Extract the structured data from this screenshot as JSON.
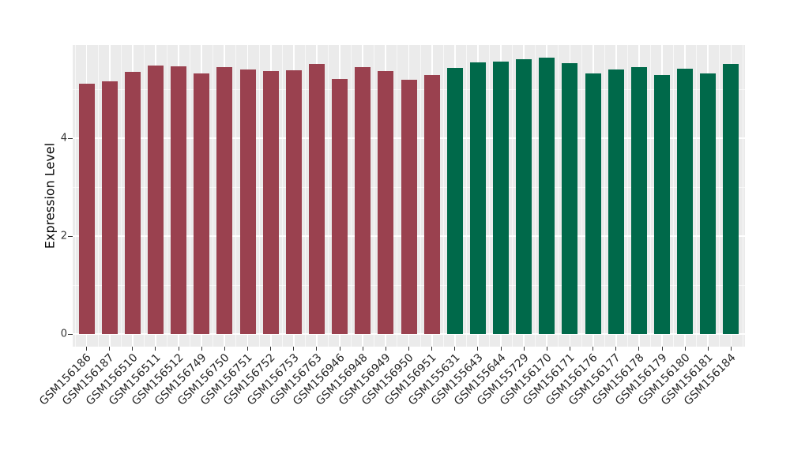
{
  "chart_data": {
    "type": "bar",
    "title": "",
    "xlabel": "",
    "ylabel": "Expression Level",
    "ylim": [
      0,
      5.9
    ],
    "yticks_major": [
      0,
      2,
      4
    ],
    "yticks_minor": [
      1,
      3,
      5
    ],
    "grid": "on",
    "legend_position": "none",
    "categories": [
      "GSM156186",
      "GSM156187",
      "GSM156510",
      "GSM156511",
      "GSM156512",
      "GSM156749",
      "GSM156750",
      "GSM156751",
      "GSM156752",
      "GSM156753",
      "GSM156763",
      "GSM156946",
      "GSM156948",
      "GSM156949",
      "GSM156950",
      "GSM156951",
      "GSM155631",
      "GSM155643",
      "GSM155644",
      "GSM155729",
      "GSM156170",
      "GSM156171",
      "GSM156176",
      "GSM156177",
      "GSM156178",
      "GSM156179",
      "GSM156180",
      "GSM156181",
      "GSM156184"
    ],
    "values": [
      5.12,
      5.16,
      5.35,
      5.48,
      5.46,
      5.33,
      5.45,
      5.4,
      5.37,
      5.38,
      5.52,
      5.21,
      5.45,
      5.37,
      5.2,
      5.29,
      5.44,
      5.55,
      5.56,
      5.61,
      5.64,
      5.53,
      5.33,
      5.41,
      5.45,
      5.29,
      5.42,
      5.33,
      5.52
    ],
    "bar_groups": [
      0,
      0,
      0,
      0,
      0,
      0,
      0,
      0,
      0,
      0,
      0,
      0,
      0,
      0,
      0,
      0,
      1,
      1,
      1,
      1,
      1,
      1,
      1,
      1,
      1,
      1,
      1,
      1,
      1
    ],
    "group_colors": [
      "#9A414F",
      "#00694A"
    ]
  },
  "colors": {
    "panel_bg": "#EBEBEB",
    "grid_major": "#FFFFFF",
    "axis_text": "#333333",
    "axis_title": "#000000",
    "tick_mark": "#333333",
    "figure_bg": "#FFFFFF"
  }
}
